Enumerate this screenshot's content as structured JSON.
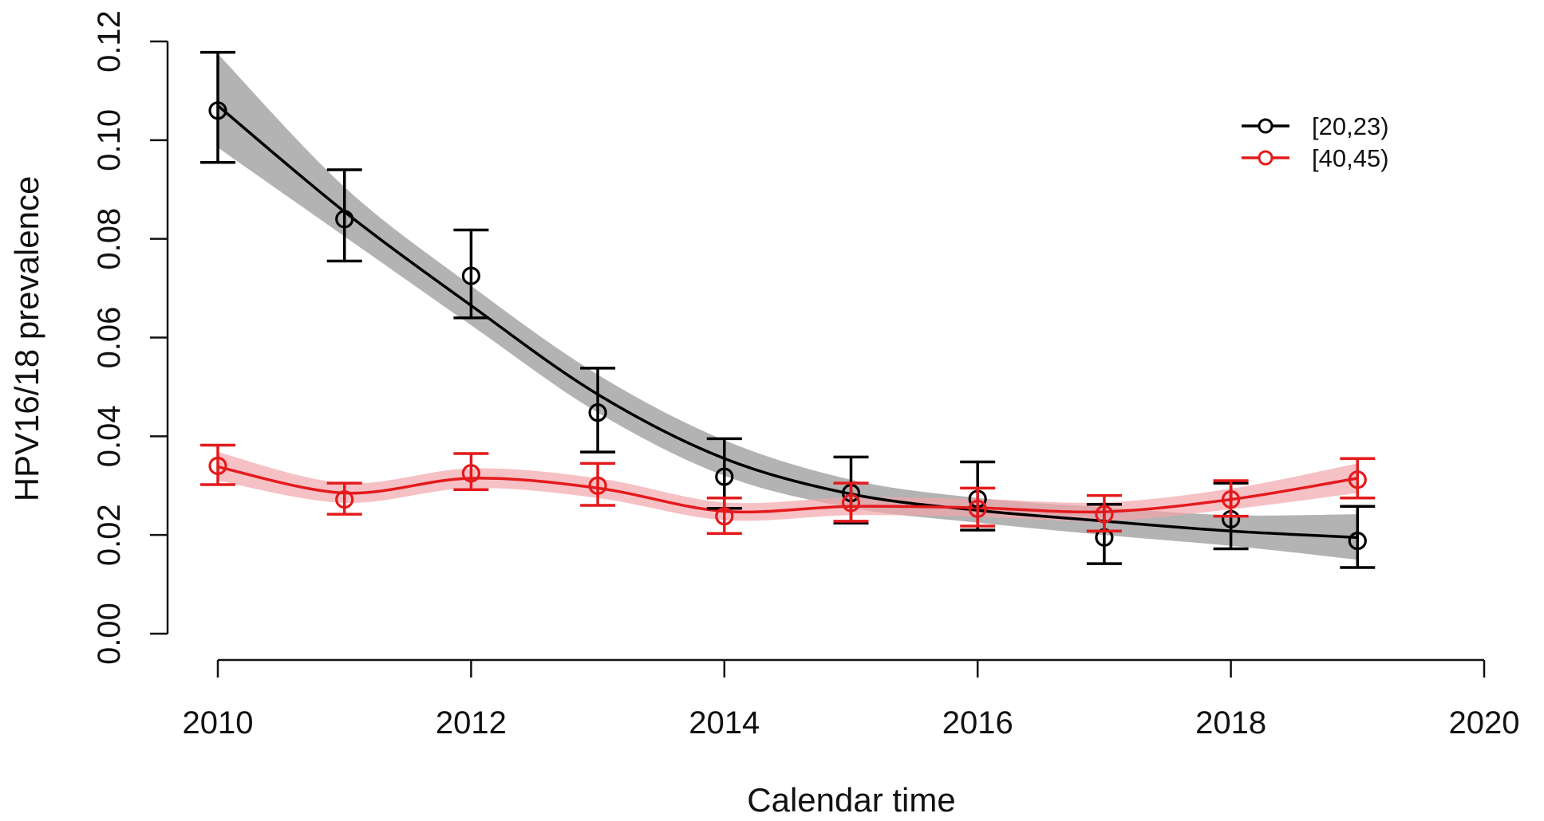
{
  "chart_data": {
    "type": "line",
    "title": "",
    "xlabel": "Calendar time",
    "ylabel": "HPV16/18 prevalence",
    "xlim": [
      2010,
      2020
    ],
    "ylim": [
      0,
      0.12
    ],
    "x_ticks": [
      2010,
      2012,
      2014,
      2016,
      2018,
      2020
    ],
    "x_tick_labels": [
      "2010",
      "2012",
      "2014",
      "2016",
      "2018",
      "2020"
    ],
    "y_ticks": [
      0,
      0.02,
      0.04,
      0.06,
      0.08,
      0.1,
      0.12
    ],
    "y_tick_labels": [
      "0.00",
      "0.02",
      "0.04",
      "0.06",
      "0.08",
      "0.10",
      "0.12"
    ],
    "grid": false,
    "legend_position": "top-right",
    "series": [
      {
        "name": "[20,23)",
        "color": "#000000",
        "band_color": "#9a9a9a",
        "points": [
          {
            "x": 2010,
            "y": 0.106,
            "lo": 0.0955,
            "hi": 0.1178
          },
          {
            "x": 2011,
            "y": 0.084,
            "lo": 0.0755,
            "hi": 0.094
          },
          {
            "x": 2012,
            "y": 0.0725,
            "lo": 0.064,
            "hi": 0.0818
          },
          {
            "x": 2013,
            "y": 0.0448,
            "lo": 0.0368,
            "hi": 0.0538
          },
          {
            "x": 2014,
            "y": 0.0318,
            "lo": 0.0254,
            "hi": 0.0395
          },
          {
            "x": 2015,
            "y": 0.0285,
            "lo": 0.0224,
            "hi": 0.0358
          },
          {
            "x": 2016,
            "y": 0.0273,
            "lo": 0.021,
            "hi": 0.0348
          },
          {
            "x": 2017,
            "y": 0.0195,
            "lo": 0.0142,
            "hi": 0.0262
          },
          {
            "x": 2018,
            "y": 0.0232,
            "lo": 0.0172,
            "hi": 0.0305
          },
          {
            "x": 2019,
            "y": 0.0188,
            "lo": 0.0134,
            "hi": 0.0258
          }
        ],
        "fit": [
          {
            "x": 2010,
            "y": 0.107,
            "lo": 0.0985,
            "hi": 0.1175
          },
          {
            "x": 2011,
            "y": 0.0855,
            "lo": 0.0805,
            "hi": 0.0905
          },
          {
            "x": 2012,
            "y": 0.0665,
            "lo": 0.0625,
            "hi": 0.0705
          },
          {
            "x": 2013,
            "y": 0.0485,
            "lo": 0.0448,
            "hi": 0.0525
          },
          {
            "x": 2014,
            "y": 0.0355,
            "lo": 0.032,
            "hi": 0.0392
          },
          {
            "x": 2015,
            "y": 0.0283,
            "lo": 0.0255,
            "hi": 0.0312
          },
          {
            "x": 2016,
            "y": 0.025,
            "lo": 0.0225,
            "hi": 0.0275
          },
          {
            "x": 2017,
            "y": 0.0228,
            "lo": 0.02,
            "hi": 0.0256
          },
          {
            "x": 2018,
            "y": 0.0208,
            "lo": 0.0178,
            "hi": 0.024
          },
          {
            "x": 2019,
            "y": 0.0195,
            "lo": 0.015,
            "hi": 0.0242
          }
        ]
      },
      {
        "name": "[40,45)",
        "color": "#e41a1c",
        "band_color": "#f2a7ad",
        "points": [
          {
            "x": 2010,
            "y": 0.034,
            "lo": 0.0302,
            "hi": 0.0382
          },
          {
            "x": 2011,
            "y": 0.0272,
            "lo": 0.0242,
            "hi": 0.0305
          },
          {
            "x": 2012,
            "y": 0.0325,
            "lo": 0.0292,
            "hi": 0.0365
          },
          {
            "x": 2013,
            "y": 0.03,
            "lo": 0.026,
            "hi": 0.0345
          },
          {
            "x": 2014,
            "y": 0.0238,
            "lo": 0.0203,
            "hi": 0.0275
          },
          {
            "x": 2015,
            "y": 0.0265,
            "lo": 0.0228,
            "hi": 0.0305
          },
          {
            "x": 2016,
            "y": 0.0253,
            "lo": 0.0218,
            "hi": 0.0295
          },
          {
            "x": 2017,
            "y": 0.0242,
            "lo": 0.0208,
            "hi": 0.028
          },
          {
            "x": 2018,
            "y": 0.0272,
            "lo": 0.0238,
            "hi": 0.031
          },
          {
            "x": 2019,
            "y": 0.0312,
            "lo": 0.0275,
            "hi": 0.0355
          }
        ],
        "fit": [
          {
            "x": 2010,
            "y": 0.0338,
            "lo": 0.031,
            "hi": 0.0368
          },
          {
            "x": 2011,
            "y": 0.0285,
            "lo": 0.0265,
            "hi": 0.0305
          },
          {
            "x": 2012,
            "y": 0.0315,
            "lo": 0.0295,
            "hi": 0.0335
          },
          {
            "x": 2013,
            "y": 0.0295,
            "lo": 0.0275,
            "hi": 0.0315
          },
          {
            "x": 2014,
            "y": 0.0248,
            "lo": 0.023,
            "hi": 0.0266
          },
          {
            "x": 2015,
            "y": 0.0258,
            "lo": 0.024,
            "hi": 0.0276
          },
          {
            "x": 2016,
            "y": 0.0255,
            "lo": 0.0237,
            "hi": 0.0273
          },
          {
            "x": 2017,
            "y": 0.0247,
            "lo": 0.0228,
            "hi": 0.0266
          },
          {
            "x": 2018,
            "y": 0.0272,
            "lo": 0.0252,
            "hi": 0.0294
          },
          {
            "x": 2019,
            "y": 0.0315,
            "lo": 0.0285,
            "hi": 0.0345
          }
        ]
      }
    ]
  }
}
